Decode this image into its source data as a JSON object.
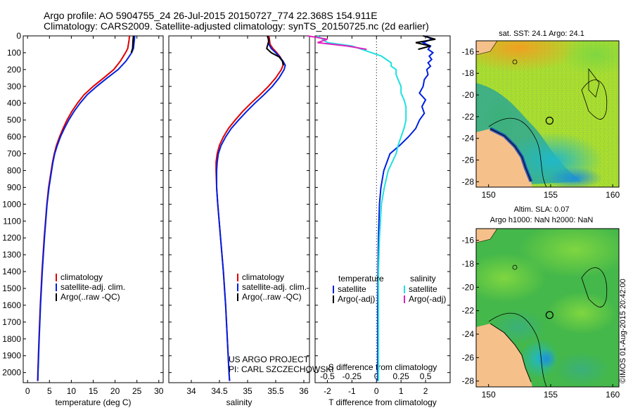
{
  "header": {
    "line1": "Argo profile: AO 5904755_24 26-Jul-2015 20150727_774 22.368S 154.911E",
    "line2": "Climatology: CARS2009. Satellite-adjusted climatology: synTS_20150725.nc (2d earlier)"
  },
  "colors": {
    "clim": "#e00000",
    "sat": "#0020e0",
    "argo": "#000000",
    "cyan": "#20e0e0",
    "magenta": "#e020c0",
    "land": "#f5c08a"
  },
  "chart_data": [
    {
      "type": "line",
      "panel": "temperature",
      "xlabel": "temperature (deg C)",
      "ylabel": "",
      "xlim": [
        -1,
        31
      ],
      "ylim": [
        2060,
        0
      ],
      "xticks": [
        0,
        5,
        10,
        15,
        20,
        25,
        30
      ],
      "yticks": [
        0,
        100,
        200,
        300,
        400,
        500,
        600,
        700,
        800,
        900,
        1000,
        1100,
        1200,
        1300,
        1400,
        1500,
        1600,
        1700,
        1800,
        1900,
        2000
      ],
      "y": [
        0,
        25,
        75,
        100,
        150,
        200,
        250,
        300,
        350,
        400,
        450,
        500,
        550,
        600,
        650,
        700,
        750,
        800,
        900,
        1000,
        1200,
        1400,
        1600,
        1800,
        2000,
        2050
      ],
      "series": [
        {
          "name": "climatology",
          "color": "#e00000",
          "values": [
            23.3,
            23.2,
            22.9,
            22.4,
            21.2,
            19.7,
            17.4,
            15.0,
            12.9,
            11.4,
            10.1,
            9.0,
            8.1,
            7.3,
            6.6,
            6.1,
            5.7,
            5.4,
            4.8,
            4.4,
            3.8,
            3.3,
            2.9,
            2.6,
            2.35,
            2.3
          ]
        },
        {
          "name": "satellite-adj. clim.",
          "color": "#0020e0",
          "values": [
            24.5,
            24.4,
            24.2,
            23.8,
            22.5,
            20.7,
            18.2,
            15.8,
            13.6,
            12.0,
            10.6,
            9.4,
            8.4,
            7.5,
            6.8,
            6.2,
            5.8,
            5.5,
            4.9,
            4.45,
            3.85,
            3.35,
            2.95,
            2.65,
            2.4,
            2.35
          ]
        },
        {
          "name": "Argo(..raw -QC)",
          "color": "#000000",
          "values": [
            24.2,
            24.1,
            24.0,
            23.7
          ]
        }
      ],
      "legend": [
        "climatology",
        "satellite-adj. clim.",
        "Argo(..raw -QC)"
      ]
    },
    {
      "type": "line",
      "panel": "salinity",
      "xlabel": "salinity",
      "xlim": [
        33.6,
        36.1
      ],
      "ylim": [
        2060,
        0
      ],
      "xticks": [
        34,
        34.5,
        35,
        35.5,
        36
      ],
      "xticklabels": [
        "34",
        "34.5",
        "35",
        "35.5",
        "36"
      ],
      "y": [
        0,
        25,
        50,
        75,
        100,
        125,
        150,
        175,
        200,
        250,
        300,
        350,
        400,
        450,
        500,
        550,
        600,
        650,
        700,
        750,
        800,
        900,
        1000,
        1200,
        1400,
        1600,
        1800,
        2000,
        2050
      ],
      "series": [
        {
          "name": "climatology",
          "color": "#e00000",
          "values": [
            35.38,
            35.39,
            35.4,
            35.45,
            35.52,
            35.58,
            35.62,
            35.63,
            35.6,
            35.5,
            35.37,
            35.22,
            35.06,
            34.91,
            34.78,
            34.66,
            34.57,
            34.5,
            34.46,
            34.44,
            34.44,
            34.45,
            34.47,
            34.52,
            34.57,
            34.61,
            34.64,
            34.67,
            34.68
          ]
        },
        {
          "name": "satellite-adj. clim.",
          "color": "#0020e0",
          "values": [
            35.36,
            35.37,
            35.38,
            35.42,
            35.5,
            35.57,
            35.63,
            35.67,
            35.65,
            35.56,
            35.44,
            35.29,
            35.13,
            34.98,
            34.84,
            34.71,
            34.61,
            34.53,
            34.48,
            34.46,
            34.45,
            34.45,
            34.47,
            34.52,
            34.57,
            34.61,
            34.64,
            34.67,
            34.68
          ]
        },
        {
          "name": "Argo(..raw -QC)",
          "color": "#000000",
          "values": [
            35.35,
            35.38,
            35.36,
            35.34,
            35.42,
            35.56,
            35.62,
            35.64
          ]
        }
      ],
      "legend": [
        "climatology",
        "satellite-adj. clim.",
        "Argo(..raw -QC)"
      ],
      "annotations": [
        "US ARGO PROJECT",
        "PI: CARL SZCZECHOWSKI"
      ]
    },
    {
      "type": "line",
      "panel": "difference",
      "xlabel": "T difference from climatology",
      "xlabel2": "S difference from climatology",
      "xlim": [
        -2.5,
        3.0
      ],
      "ylim": [
        2060,
        0
      ],
      "xticks": [
        -2,
        -1,
        0,
        1,
        2
      ],
      "xticks2": [
        -0.5,
        -0.25,
        0,
        0.25,
        0.5
      ],
      "xticklabels2": [
        "-0.5",
        "-0.25",
        "0",
        "0.25",
        "0.5"
      ],
      "y": [
        0,
        20,
        40,
        60,
        80,
        100,
        120,
        140,
        160,
        180,
        200,
        230,
        260,
        300,
        340,
        380,
        420,
        460,
        500,
        550,
        600,
        650,
        700,
        800,
        900,
        1000,
        1200,
        1400,
        1600,
        1800,
        2000,
        2050
      ],
      "series": [
        {
          "name": "satellite",
          "group": "temperature",
          "color": "#0020e0",
          "values": [
            2.0,
            2.25,
            1.9,
            2.2,
            2.1,
            2.3,
            2.15,
            2.25,
            2.1,
            2.2,
            2.05,
            2.1,
            1.95,
            1.9,
            1.75,
            2.0,
            1.85,
            1.95,
            1.75,
            1.6,
            1.3,
            0.95,
            0.55,
            0.3,
            0.18,
            0.12,
            0.08,
            0.06,
            0.05,
            0.05,
            0.05,
            0.05
          ]
        },
        {
          "name": "Argo(-adj)",
          "group": "temperature",
          "color": "#000000",
          "values": [
            1.9,
            2.4,
            1.6,
            2.2,
            1.7
          ]
        },
        {
          "name": "satellite",
          "group": "salinity",
          "color": "#20e0e0",
          "values": [
            -0.6,
            -0.55,
            -0.5,
            -0.25,
            -0.15,
            -0.05,
            0.05,
            0.1,
            0.15,
            0.15,
            0.2,
            0.2,
            0.22,
            0.25,
            0.25,
            0.28,
            0.3,
            0.3,
            0.3,
            0.28,
            0.25,
            0.22,
            0.2,
            0.12,
            0.08,
            0.05,
            0.03,
            0.02,
            0.02,
            0.02,
            0.02,
            0.02
          ]
        },
        {
          "name": "Argo(-adj)",
          "group": "salinity",
          "color": "#e020c0",
          "values": [
            -0.7,
            -0.5,
            -0.6,
            -0.3,
            -0.1
          ]
        }
      ],
      "legend_headers": [
        "temperature",
        "salinity"
      ],
      "legend": [
        "satellite",
        "Argo(-adj)",
        "satellite",
        "Argo(-adj)"
      ]
    },
    {
      "type": "heatmap",
      "panel": "map-sst",
      "title": "sat. SST: 24.1  Argo: 24.1",
      "xlim": [
        149,
        160.5
      ],
      "ylim": [
        -28.5,
        -15
      ],
      "xticks": [
        150,
        155,
        160
      ],
      "yticks": [
        -16,
        -18,
        -20,
        -22,
        -24,
        -26,
        -28
      ],
      "argo_point": [
        154.911,
        -22.368
      ]
    },
    {
      "type": "heatmap",
      "panel": "map-sla",
      "title": "Altim. SLA: 0.07",
      "title2": "Argo h1000: NaN h2000: NaN",
      "xlim": [
        149,
        160.5
      ],
      "ylim": [
        -28.5,
        -15
      ],
      "xticks": [
        150,
        155,
        160
      ],
      "yticks": [
        -16,
        -18,
        -20,
        -22,
        -24,
        -26,
        -28
      ],
      "argo_point": [
        154.911,
        -22.368
      ]
    }
  ],
  "copyright": "©IMOS 01-Aug-2015 20:42:00"
}
